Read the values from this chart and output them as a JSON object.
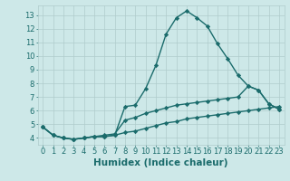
{
  "title": "",
  "xlabel": "Humidex (Indice chaleur)",
  "ylabel": "",
  "xlim": [
    -0.5,
    23.5
  ],
  "ylim": [
    3.5,
    13.7
  ],
  "xticks": [
    0,
    1,
    2,
    3,
    4,
    5,
    6,
    7,
    8,
    9,
    10,
    11,
    12,
    13,
    14,
    15,
    16,
    17,
    18,
    19,
    20,
    21,
    22,
    23
  ],
  "yticks": [
    4,
    5,
    6,
    7,
    8,
    9,
    10,
    11,
    12,
    13
  ],
  "bg_color": "#cde8e8",
  "grid_color": "#b0cccc",
  "line_color": "#1a6b6b",
  "line1_x": [
    0,
    1,
    2,
    3,
    4,
    5,
    6,
    7,
    8,
    9,
    10,
    11,
    12,
    13,
    14,
    15,
    16,
    17,
    18,
    19,
    20,
    21,
    22,
    23
  ],
  "line1_y": [
    4.8,
    4.2,
    4.0,
    3.9,
    4.0,
    4.1,
    4.1,
    4.2,
    6.3,
    6.4,
    7.6,
    9.3,
    11.6,
    12.8,
    13.3,
    12.8,
    12.2,
    10.9,
    9.8,
    8.6,
    7.8,
    7.5,
    6.5,
    6.1
  ],
  "line2_x": [
    0,
    1,
    2,
    3,
    4,
    5,
    6,
    7,
    8,
    9,
    10,
    11,
    12,
    13,
    14,
    15,
    16,
    17,
    18,
    19,
    20,
    21,
    22,
    23
  ],
  "line2_y": [
    4.8,
    4.2,
    4.0,
    3.9,
    4.0,
    4.1,
    4.2,
    4.3,
    5.3,
    5.5,
    5.8,
    6.0,
    6.2,
    6.4,
    6.5,
    6.6,
    6.7,
    6.8,
    6.9,
    7.0,
    7.8,
    7.5,
    6.5,
    6.1
  ],
  "line3_x": [
    0,
    1,
    2,
    3,
    4,
    5,
    6,
    7,
    8,
    9,
    10,
    11,
    12,
    13,
    14,
    15,
    16,
    17,
    18,
    19,
    20,
    21,
    22,
    23
  ],
  "line3_y": [
    4.8,
    4.2,
    4.0,
    3.9,
    4.0,
    4.1,
    4.1,
    4.2,
    4.4,
    4.5,
    4.7,
    4.9,
    5.1,
    5.2,
    5.4,
    5.5,
    5.6,
    5.7,
    5.8,
    5.9,
    6.0,
    6.1,
    6.2,
    6.3
  ],
  "marker": "D",
  "markersize": 2.2,
  "linewidth": 1.0,
  "xlabel_fontsize": 7.5,
  "tick_fontsize": 6.0
}
